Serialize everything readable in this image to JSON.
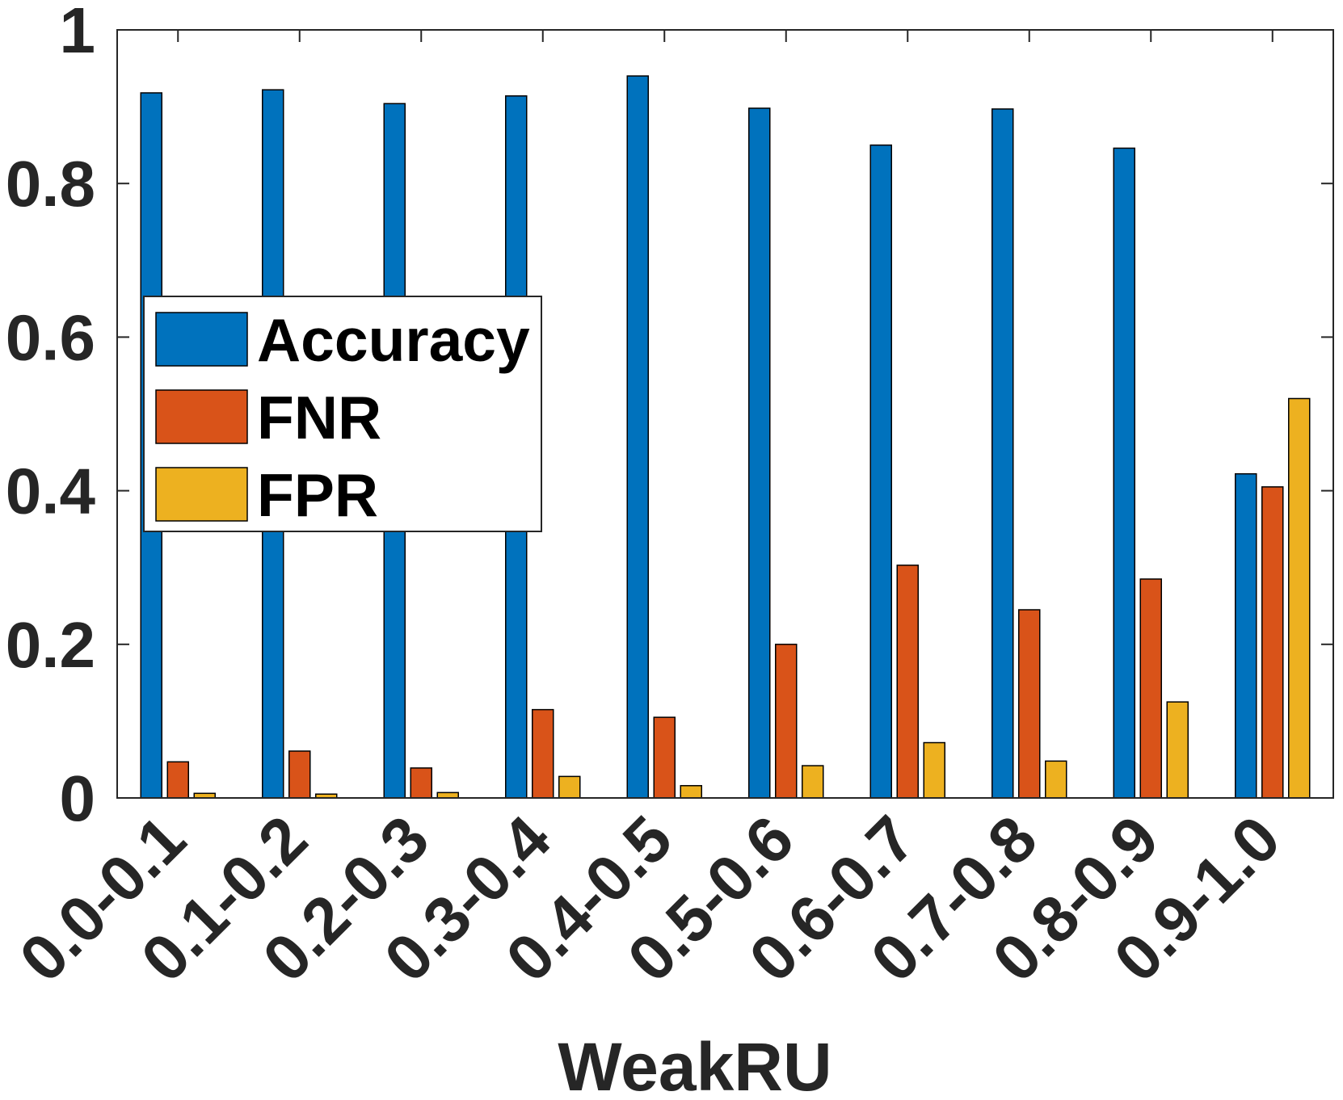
{
  "chart_data": {
    "type": "bar",
    "xlabel": "WeakRU",
    "ylabel": "",
    "ylim": [
      0,
      1
    ],
    "yticks": [
      0,
      0.2,
      0.4,
      0.6,
      0.8,
      1
    ],
    "ytick_labels": [
      "0",
      "0.2",
      "0.4",
      "0.6",
      "0.8",
      "1"
    ],
    "categories": [
      "0.0-0.1",
      "0.1-0.2",
      "0.2-0.3",
      "0.3-0.4",
      "0.4-0.5",
      "0.5-0.6",
      "0.6-0.7",
      "0.7-0.8",
      "0.8-0.9",
      "0.9-1.0"
    ],
    "series": [
      {
        "name": "Accuracy",
        "color": "#0072BD",
        "values": [
          0.918,
          0.922,
          0.904,
          0.914,
          0.94,
          0.898,
          0.85,
          0.897,
          0.846,
          0.422
        ]
      },
      {
        "name": "FNR",
        "color": "#D95319",
        "values": [
          0.047,
          0.061,
          0.039,
          0.115,
          0.105,
          0.2,
          0.303,
          0.245,
          0.285,
          0.405
        ]
      },
      {
        "name": "FPR",
        "color": "#EDB120",
        "values": [
          0.006,
          0.005,
          0.007,
          0.028,
          0.016,
          0.042,
          0.072,
          0.048,
          0.125,
          0.52
        ]
      }
    ],
    "grid": false,
    "legend_position": "left"
  }
}
